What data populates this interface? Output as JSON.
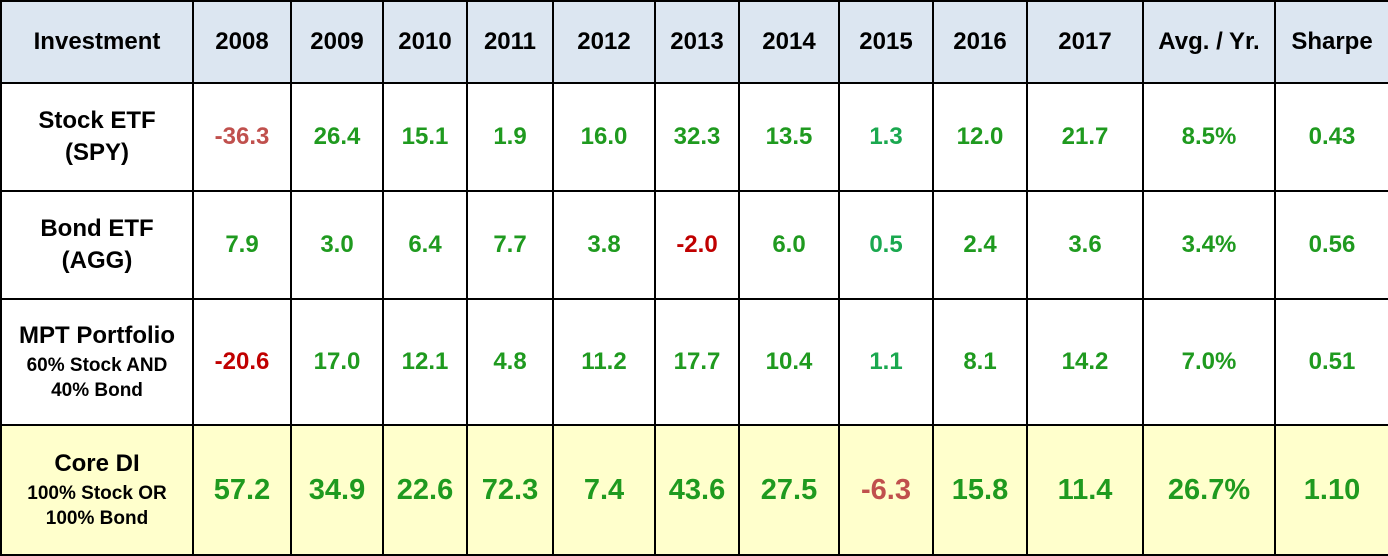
{
  "chart_data": {
    "type": "table",
    "title": "",
    "columns": [
      "Investment",
      "2008",
      "2009",
      "2010",
      "2011",
      "2012",
      "2013",
      "2014",
      "2015",
      "2016",
      "2017",
      "Avg. / Yr.",
      "Sharpe"
    ],
    "rows": [
      {
        "name": "Stock ETF",
        "sub": [
          "(SPY)"
        ],
        "values": [
          "-36.3",
          "26.4",
          "15.1",
          "1.9",
          "16.0",
          "32.3",
          "13.5",
          "1.3",
          "12.0",
          "21.7",
          "8.5%",
          "0.43"
        ]
      },
      {
        "name": "Bond ETF",
        "sub": [
          "(AGG)"
        ],
        "values": [
          "7.9",
          "3.0",
          "6.4",
          "7.7",
          "3.8",
          "-2.0",
          "6.0",
          "0.5",
          "2.4",
          "3.6",
          "3.4%",
          "0.56"
        ]
      },
      {
        "name": "MPT Portfolio",
        "sub": [
          "60% Stock AND",
          "40% Bond"
        ],
        "values": [
          "-20.6",
          "17.0",
          "12.1",
          "4.8",
          "11.2",
          "17.7",
          "10.4",
          "1.1",
          "8.1",
          "14.2",
          "7.0%",
          "0.51"
        ]
      },
      {
        "name": "Core DI",
        "sub": [
          "100% Stock OR",
          "100% Bond"
        ],
        "values": [
          "57.2",
          "34.9",
          "22.6",
          "72.3",
          "7.4",
          "43.6",
          "27.5",
          "-6.3",
          "15.8",
          "11.4",
          "26.7%",
          "1.10"
        ]
      }
    ]
  },
  "colors": {
    "header_bg": "#dce6f1",
    "core_row_bg": "#ffffcc",
    "positive": "#1f9a1f",
    "positive_small": "#1aa84f",
    "negative_dark": "#c00000",
    "negative_muted": "#c0504d",
    "border": "#000000"
  }
}
